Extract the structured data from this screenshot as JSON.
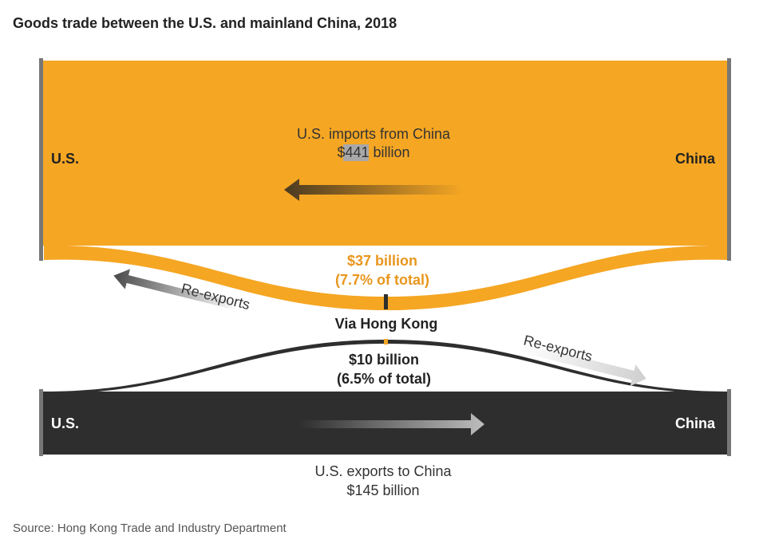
{
  "chart_data": {
    "type": "sankey",
    "title": "Goods trade between the U.S. and mainland China, 2018",
    "source": "Source: Hong Kong Trade and Industry Department",
    "colors": {
      "imports": "#f5a623",
      "exports": "#2e2e2e",
      "axis": "#777777",
      "imports_text": "#e8961c",
      "dark_text": "#222222"
    },
    "flows": [
      {
        "id": "imports",
        "from": "China",
        "to": "U.S.",
        "label": "U.S. imports from China",
        "value_prefix": "$",
        "value": 441,
        "value_suffix": " billion"
      },
      {
        "id": "reexport_to_us",
        "label_value": "$37 billion",
        "label_share": "(7.7% of total)",
        "value": 37,
        "share_pct": 7.7,
        "via": "Via Hong Kong",
        "arrow_label": "Re-exports"
      },
      {
        "id": "reexport_to_china",
        "label_value": "$10 billion",
        "label_share": "(6.5% of total)",
        "value": 10,
        "share_pct": 6.5,
        "arrow_label": "Re-exports"
      },
      {
        "id": "exports",
        "from": "U.S.",
        "to": "China",
        "label": "U.S. exports to China",
        "value_label": "$145 billion",
        "value": 145
      }
    ],
    "nodes": {
      "us": "U.S.",
      "china": "China"
    }
  }
}
